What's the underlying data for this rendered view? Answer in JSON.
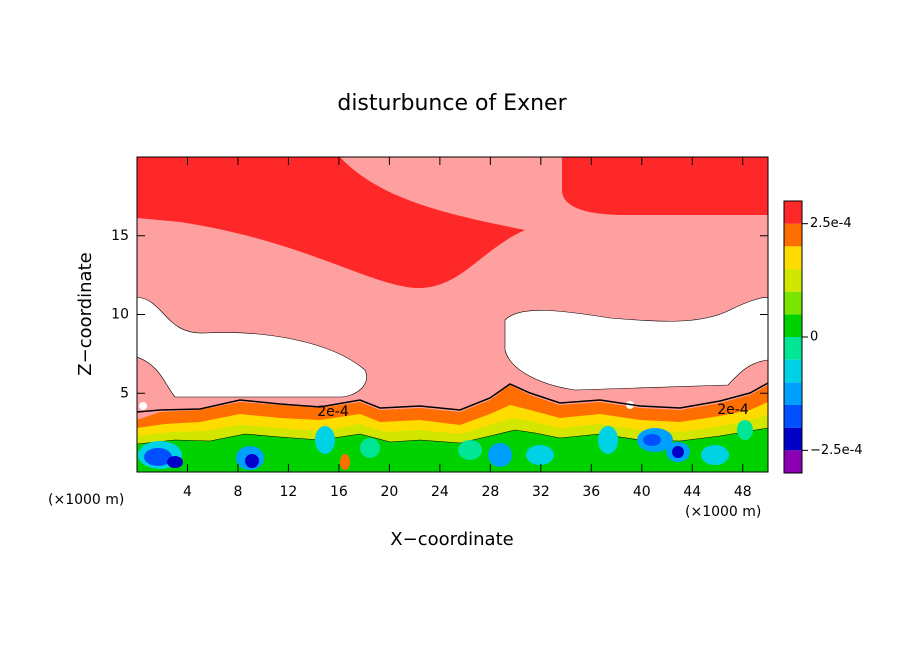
{
  "chart_data": {
    "type": "contour",
    "title": "disturbunce of Exner",
    "x_label": "X−coordinate",
    "y_label": "Z−coordinate",
    "x_unit": "(×1000 m)",
    "xlim": [
      0,
      50
    ],
    "ylim": [
      0,
      20
    ],
    "xticks": [
      4,
      8,
      12,
      16,
      20,
      24,
      28,
      32,
      36,
      40,
      44,
      48
    ],
    "yticks": [
      5,
      10,
      15
    ],
    "colorbar": {
      "levels": [
        -0.0003,
        -0.00025,
        -0.0002,
        -0.00015,
        -0.0001,
        -5e-05,
        0,
        5e-05,
        0.0001,
        0.00015,
        0.0002,
        0.00025,
        0.0003
      ],
      "colors": [
        "#8c00b4",
        "#0000c8",
        "#0050ff",
        "#00a0ff",
        "#00d2e6",
        "#00e696",
        "#00d200",
        "#78e600",
        "#d2e600",
        "#ffdc00",
        "#ff6e00",
        "#ff2828",
        "#ffa0a0"
      ],
      "ticks": [
        {
          "value": 0.00025,
          "label": "2.5e-4"
        },
        0,
        {
          "value": -0.00025,
          "label": "−2.5e-4"
        }
      ]
    },
    "annotations": [
      "2e-4",
      "2e-4"
    ]
  }
}
